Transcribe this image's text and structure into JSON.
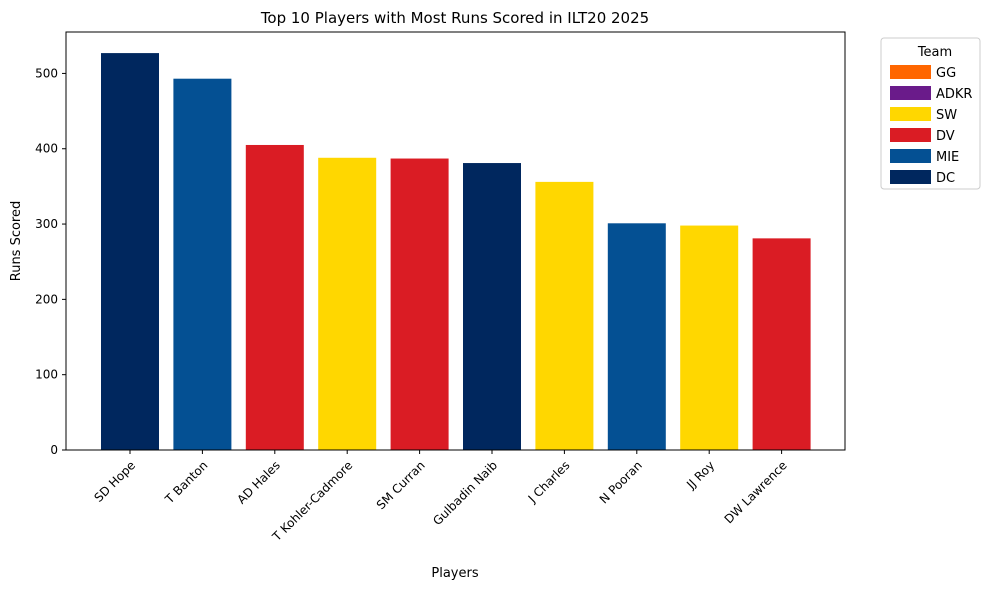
{
  "chart_data": {
    "type": "bar",
    "title": "Top 10 Players with Most Runs Scored in ILT20 2025",
    "xlabel": "Players",
    "ylabel": "Runs Scored",
    "ylim": [
      0,
      555
    ],
    "yticks": [
      0,
      100,
      200,
      300,
      400,
      500
    ],
    "grid": false,
    "categories": [
      "SD Hope",
      "T Banton",
      "AD Hales",
      "T Kohler-Cadmore",
      "SM Curran",
      "Gulbadin Naib",
      "J Charles",
      "N Pooran",
      "JJ Roy",
      "DW Lawrence"
    ],
    "values": [
      527,
      493,
      405,
      388,
      387,
      381,
      356,
      301,
      298,
      281
    ],
    "teams": [
      "DC",
      "MIE",
      "DV",
      "SW",
      "DV",
      "DC",
      "SW",
      "MIE",
      "SW",
      "DV"
    ],
    "legend": {
      "title": "Team",
      "placement": "outside-right",
      "entries": [
        {
          "label": "GG",
          "color": "#ff6600"
        },
        {
          "label": "ADKR",
          "color": "#6a1b8a"
        },
        {
          "label": "SW",
          "color": "#ffd700"
        },
        {
          "label": "DV",
          "color": "#da1c24"
        },
        {
          "label": "MIE",
          "color": "#045093"
        },
        {
          "label": "DC",
          "color": "#00275e"
        }
      ]
    }
  }
}
